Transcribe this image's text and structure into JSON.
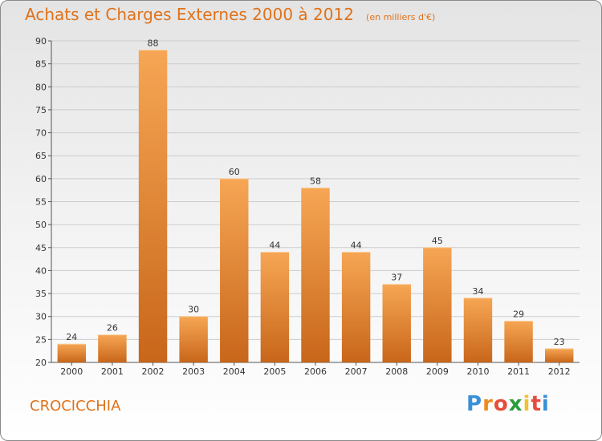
{
  "header": {
    "title": "Achats et Charges Externes 2000 à 2012",
    "subtitle": "(en milliers d'€)"
  },
  "footer": {
    "place": "CROCICCHIA",
    "logo_letters": [
      "P",
      "r",
      "o",
      "x",
      "i",
      "t",
      "i"
    ],
    "logo_colors": [
      "#3a8fd6",
      "#f08a1e",
      "#e74c3c",
      "#2a9d3a",
      "#f2c12e",
      "#e74c3c",
      "#3a8fd6"
    ]
  },
  "colors": {
    "bar_light": "#f6a654",
    "bar_dark": "#c8661a",
    "grid": "#cccccc",
    "axis": "#555555"
  },
  "chart_data": {
    "type": "bar",
    "categories": [
      "2000",
      "2001",
      "2002",
      "2003",
      "2004",
      "2005",
      "2006",
      "2007",
      "2008",
      "2009",
      "2010",
      "2011",
      "2012"
    ],
    "values": [
      24,
      26,
      88,
      30,
      60,
      44,
      58,
      44,
      37,
      45,
      34,
      29,
      23
    ],
    "ylim": [
      20,
      90
    ],
    "yticks": [
      20,
      25,
      30,
      35,
      40,
      45,
      50,
      55,
      60,
      65,
      70,
      75,
      80,
      85,
      90
    ],
    "grid": true
  }
}
